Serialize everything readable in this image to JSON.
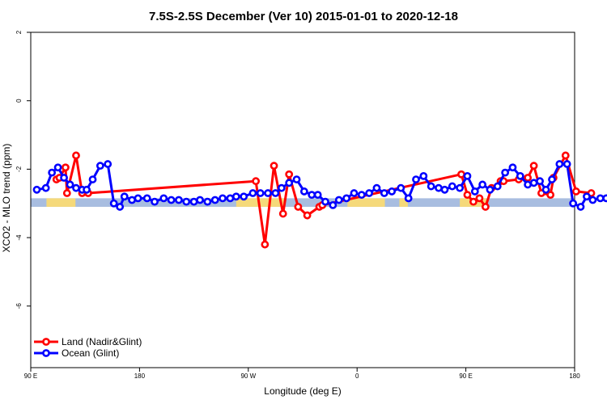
{
  "chart_data": {
    "type": "line",
    "title": "7.5S-2.5S December (Ver 10)   2015-01-01 to 2020-12-18",
    "xlabel": "Longitude (deg E)",
    "ylabel": "XCO2 - MLO trend (ppm)",
    "xlim": [
      90,
      450
    ],
    "ylim": [
      -7.8,
      2.0
    ],
    "x_ticks": [
      {
        "value": 90,
        "label": "90 E"
      },
      {
        "value": 180,
        "label": "180"
      },
      {
        "value": 270,
        "label": "90 W"
      },
      {
        "value": 360,
        "label": "0"
      },
      {
        "value": 450,
        "label": "90 E"
      },
      {
        "value": 540,
        "label": "180"
      }
    ],
    "y_ticks": [
      2,
      0,
      -2,
      -4,
      -6
    ],
    "colors": {
      "land": "#ff0000",
      "ocean": "#0000ff",
      "band_ocean": "#a8bde0",
      "band_land": "#f5d97a"
    },
    "legend": {
      "position": "bottom-left"
    },
    "series": [
      {
        "name": "Land (Nadir&Glint)",
        "color": "#ff0000",
        "x": [
          107,
          109,
          113,
          114,
          120,
          124,
          128,
          239,
          245,
          251,
          257,
          261,
          267,
          273,
          281,
          283,
          375,
          379,
          383,
          387,
          391,
          395,
          401,
          403,
          413,
          419,
          423,
          428,
          434,
          436,
          444,
          451,
          461
        ],
        "y": [
          -2.3,
          -2.25,
          -1.95,
          -2.7,
          -1.6,
          -2.7,
          -2.7,
          -2.35,
          -4.2,
          -1.9,
          -3.3,
          -2.15,
          -3.1,
          -3.35,
          -3.1,
          -3.05,
          -2.15,
          -2.75,
          -2.95,
          -2.85,
          -3.1,
          -2.55,
          -2.35,
          -2.35,
          -2.3,
          -2.25,
          -1.9,
          -2.7,
          -2.75,
          -2.25,
          -1.6,
          -2.65,
          -2.7
        ]
      },
      {
        "name": "Ocean (Glint)",
        "color": "#0000ff",
        "x": [
          94,
          100,
          104,
          108,
          112,
          116,
          120,
          124,
          127,
          131,
          136,
          141,
          145,
          149,
          152,
          157,
          161,
          167,
          172,
          178,
          183,
          188,
          193,
          198,
          202,
          207,
          212,
          217,
          222,
          226,
          231,
          237,
          242,
          247,
          252,
          256,
          261,
          266,
          271,
          276,
          280,
          285,
          290,
          294,
          299,
          304,
          309,
          314,
          319,
          324,
          329,
          335,
          340,
          345,
          350,
          355,
          360,
          364,
          369,
          374,
          379,
          384,
          389,
          394,
          399,
          404,
          409,
          414,
          419,
          423,
          427,
          431,
          435,
          440,
          445,
          449,
          454,
          458,
          462,
          467,
          471,
          475
        ],
        "y": [
          -2.6,
          -2.55,
          -2.1,
          -1.95,
          -2.25,
          -2.45,
          -2.55,
          -2.6,
          -2.6,
          -2.3,
          -1.9,
          -1.85,
          -3.0,
          -3.1,
          -2.8,
          -2.9,
          -2.85,
          -2.85,
          -2.95,
          -2.85,
          -2.9,
          -2.9,
          -2.95,
          -2.95,
          -2.9,
          -2.95,
          -2.9,
          -2.85,
          -2.85,
          -2.8,
          -2.8,
          -2.7,
          -2.7,
          -2.7,
          -2.7,
          -2.55,
          -2.4,
          -2.3,
          -2.65,
          -2.75,
          -2.75,
          -2.95,
          -3.05,
          -2.9,
          -2.85,
          -2.7,
          -2.75,
          -2.7,
          -2.55,
          -2.7,
          -2.65,
          -2.55,
          -2.85,
          -2.3,
          -2.2,
          -2.5,
          -2.55,
          -2.6,
          -2.5,
          -2.55,
          -2.2,
          -2.65,
          -2.45,
          -2.6,
          -2.5,
          -2.1,
          -1.95,
          -2.2,
          -2.45,
          -2.4,
          -2.35,
          -2.6,
          -2.3,
          -1.85,
          -1.85,
          -3.0,
          -3.1,
          -2.8,
          -2.9,
          -2.85,
          -2.85,
          -2.85
        ]
      }
    ],
    "surface_band": {
      "y_top": -2.85,
      "y_bottom": -3.1,
      "land_ranges": [
        [
          103,
          127
        ],
        [
          260,
          300
        ],
        [
          352,
          383
        ],
        [
          395,
          402
        ],
        [
          445,
          467
        ]
      ]
    }
  }
}
